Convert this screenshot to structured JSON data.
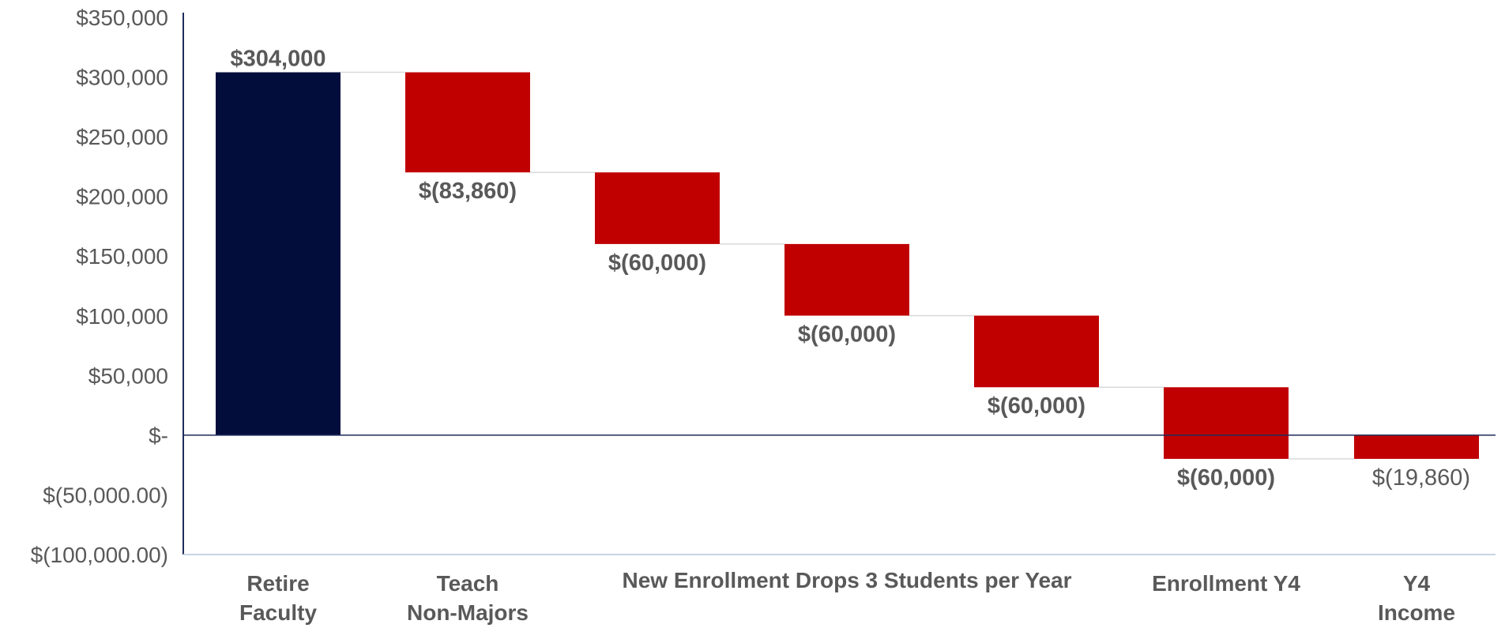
{
  "chart_data": {
    "type": "bar",
    "subtype": "waterfall",
    "title": "",
    "xlabel": "",
    "ylabel": "",
    "ylim": [
      -100000,
      350000
    ],
    "y_ticks": [
      350000,
      300000,
      250000,
      200000,
      150000,
      100000,
      50000,
      0,
      -50000,
      -100000
    ],
    "y_tick_labels": [
      "$350,000",
      "$300,000",
      "$250,000",
      "$200,000",
      "$150,000",
      "$100,000",
      "$50,000",
      "$-",
      "$(50,000.00)",
      "$(100,000.00)"
    ],
    "grid": false,
    "legend": "none",
    "categories": [
      [
        "Retire",
        "Faculty"
      ],
      [
        "Teach",
        "Non-Majors"
      ],
      [
        "New Enrollment Drops 3 Students per Year"
      ],
      [
        "Enrollment Y4"
      ],
      [
        "Y4",
        "Income"
      ]
    ],
    "bars": [
      {
        "kind": "total",
        "start": 0,
        "end": 304000,
        "value": 304000,
        "label": "$304,000",
        "label_pos": "above"
      },
      {
        "kind": "decrease",
        "start": 304000,
        "end": 220140,
        "value": -83860,
        "label": "$(83,860)",
        "label_pos": "below"
      },
      {
        "kind": "decrease",
        "start": 220140,
        "end": 160140,
        "value": -60000,
        "label": "$(60,000)",
        "label_pos": "below"
      },
      {
        "kind": "decrease",
        "start": 160140,
        "end": 100140,
        "value": -60000,
        "label": "$(60,000)",
        "label_pos": "below"
      },
      {
        "kind": "decrease",
        "start": 100140,
        "end": 40140,
        "value": -60000,
        "label": "$(60,000)",
        "label_pos": "below"
      },
      {
        "kind": "decrease",
        "start": 40140,
        "end": -19860,
        "value": -60000,
        "label": "$(60,000)",
        "label_pos": "below"
      },
      {
        "kind": "result",
        "start": 0,
        "end": -19860,
        "value": -19860,
        "label": "$(19,860)",
        "label_pos": "below"
      }
    ],
    "colors": {
      "total": "#030D3C",
      "decrease": "#C00000",
      "result": "#C00000",
      "axis": "#1F2D5A",
      "zero_line": "#1F2D5A",
      "bottom_line": "#C9D3E3",
      "connector": "#D9D9D9",
      "text": "#595959",
      "final_label": "#1F2D5A"
    }
  }
}
